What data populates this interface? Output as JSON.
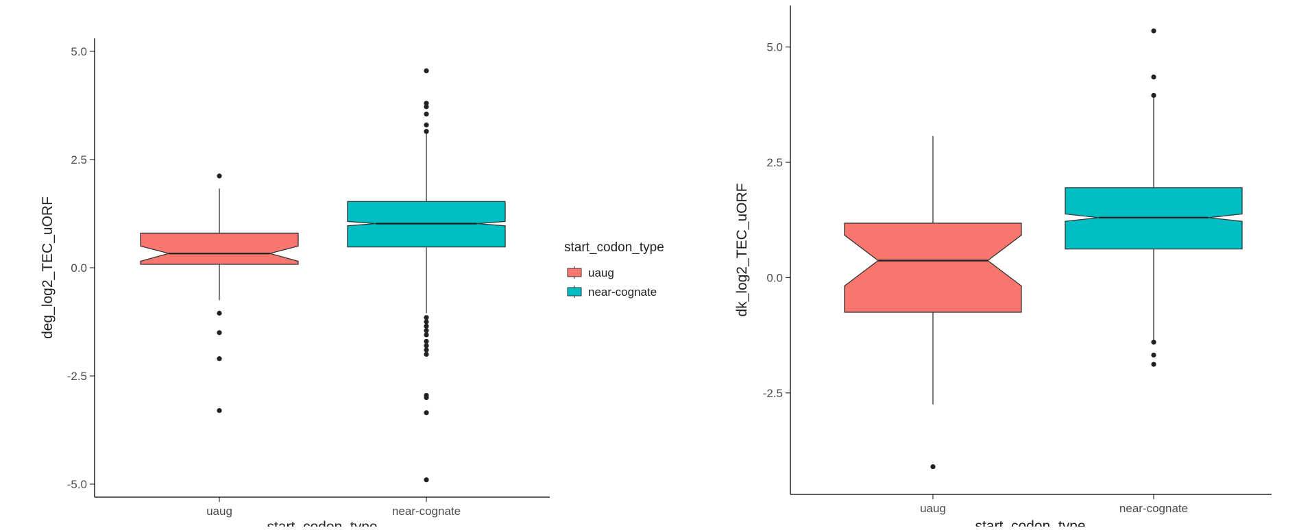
{
  "legend": {
    "title": "start_codon_type",
    "items": [
      {
        "label": "uaug",
        "color": "#F8766D"
      },
      {
        "label": "near-cognate",
        "color": "#00BFC4"
      }
    ]
  },
  "chart_data": [
    {
      "type": "box",
      "notched": true,
      "xlabel": "start_codon_type",
      "ylabel": "deg_log2_TEC_uORF",
      "ylim": [
        -5.3,
        5.3
      ],
      "yticks": [
        5.0,
        2.5,
        0.0,
        -2.5,
        -5.0
      ],
      "ytick_labels": [
        "5.0",
        "2.5",
        "0.0",
        "-2.5",
        "-5.0"
      ],
      "categories": [
        "uaug",
        "near-cognate"
      ],
      "grid": false,
      "legend": "right",
      "boxes": [
        {
          "category": "uaug",
          "color": "#F8766D",
          "whisker_low": -0.75,
          "q1": 0.08,
          "median": 0.33,
          "q3": 0.8,
          "whisker_high": 1.83,
          "notch_low": 0.15,
          "notch_high": 0.5,
          "outliers": [
            2.12,
            -1.05,
            -1.5,
            -2.1,
            -3.3
          ]
        },
        {
          "category": "near-cognate",
          "color": "#00BFC4",
          "whisker_low": -1.05,
          "q1": 0.48,
          "median": 1.02,
          "q3": 1.53,
          "whisker_high": 3.1,
          "notch_low": 0.97,
          "notch_high": 1.07,
          "outliers": [
            4.55,
            3.8,
            3.72,
            3.55,
            3.3,
            3.15,
            -1.15,
            -1.25,
            -1.35,
            -1.45,
            -1.55,
            -1.7,
            -1.8,
            -1.9,
            -2.0,
            -2.95,
            -3.0,
            -3.35,
            -4.9
          ]
        }
      ]
    },
    {
      "type": "box",
      "notched": true,
      "xlabel": "start_codon_type",
      "ylabel": "dk_log2_TEC_uORF",
      "ylim": [
        -4.7,
        5.9
      ],
      "yticks": [
        5.0,
        2.5,
        0.0,
        -2.5
      ],
      "ytick_labels": [
        "5.0",
        "2.5",
        "0.0",
        "-2.5"
      ],
      "categories": [
        "uaug",
        "near-cognate"
      ],
      "grid": false,
      "boxes": [
        {
          "category": "uaug",
          "color": "#F8766D",
          "whisker_low": -2.75,
          "q1": -0.75,
          "median": 0.37,
          "q3": 1.18,
          "whisker_high": 3.07,
          "notch_low": -0.18,
          "notch_high": 0.92,
          "outliers": [
            -4.1
          ]
        },
        {
          "category": "near-cognate",
          "color": "#00BFC4",
          "whisker_low": -1.35,
          "q1": 0.62,
          "median": 1.3,
          "q3": 1.95,
          "whisker_high": 3.95,
          "notch_low": 1.22,
          "notch_high": 1.38,
          "outliers": [
            5.35,
            4.35,
            3.95,
            -1.4,
            -1.68,
            -1.88
          ]
        }
      ]
    }
  ]
}
